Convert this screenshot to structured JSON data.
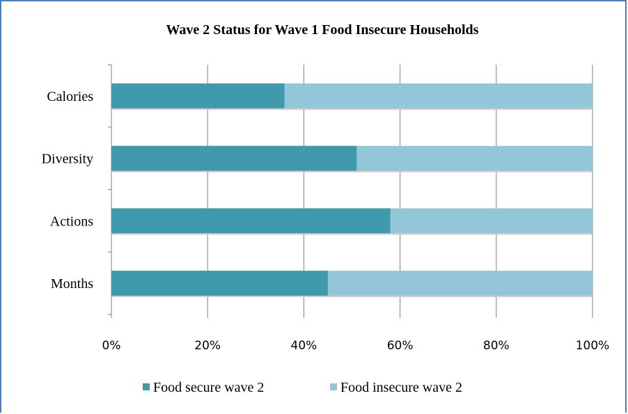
{
  "chart_data": {
    "type": "bar",
    "orientation": "horizontal",
    "stacked": "percent",
    "title": "Wave 2 Status for Wave 1 Food Insecure Households",
    "categories": [
      "Calories",
      "Diversity",
      "Actions",
      "Months"
    ],
    "series": [
      {
        "name": "Food secure wave 2",
        "values": [
          36,
          51,
          58,
          45
        ],
        "color": "#3f9aac"
      },
      {
        "name": "Food insecure wave 2",
        "values": [
          64,
          49,
          42,
          55
        ],
        "color": "#93c6d8"
      }
    ],
    "xlim": [
      0,
      100
    ],
    "xticks": [
      "0%",
      "20%",
      "40%",
      "60%",
      "80%",
      "100%"
    ],
    "grid": "vertical",
    "legend": "bottom"
  },
  "colors": {
    "frame": "#4a7ebb",
    "gridline": "#808080",
    "axis": "#808080"
  }
}
